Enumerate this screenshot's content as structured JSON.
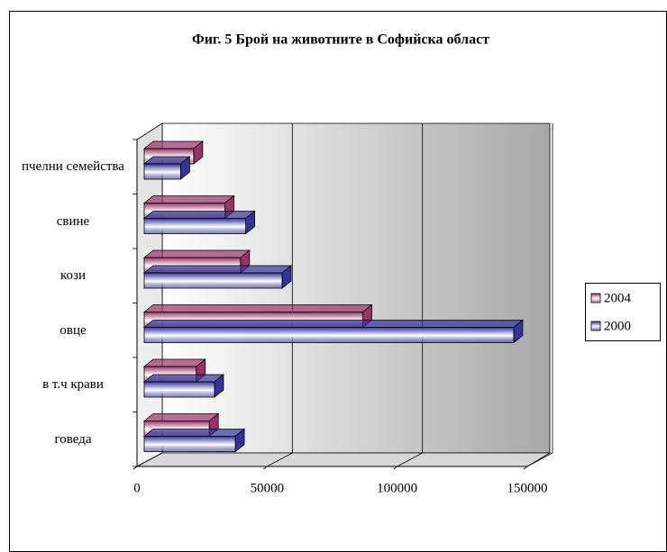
{
  "chart_data": {
    "type": "bar3d-horizontal",
    "title": "Фиг. 5 Брой на животните в Софийска област",
    "categories": [
      "говеда",
      "в т.ч крави",
      "овце",
      "кози",
      "свине",
      "пчелни семейства"
    ],
    "series": [
      {
        "name": "2004",
        "color": "#993366",
        "values": [
          25000,
          20000,
          84000,
          37000,
          31000,
          19000
        ]
      },
      {
        "name": "2000",
        "color": "#333399",
        "values": [
          35000,
          27000,
          142000,
          53000,
          39000,
          14000
        ]
      }
    ],
    "xlim": [
      0,
      150000
    ],
    "xticks": [
      0,
      50000,
      100000,
      150000
    ],
    "grid": true,
    "legend": "right"
  }
}
